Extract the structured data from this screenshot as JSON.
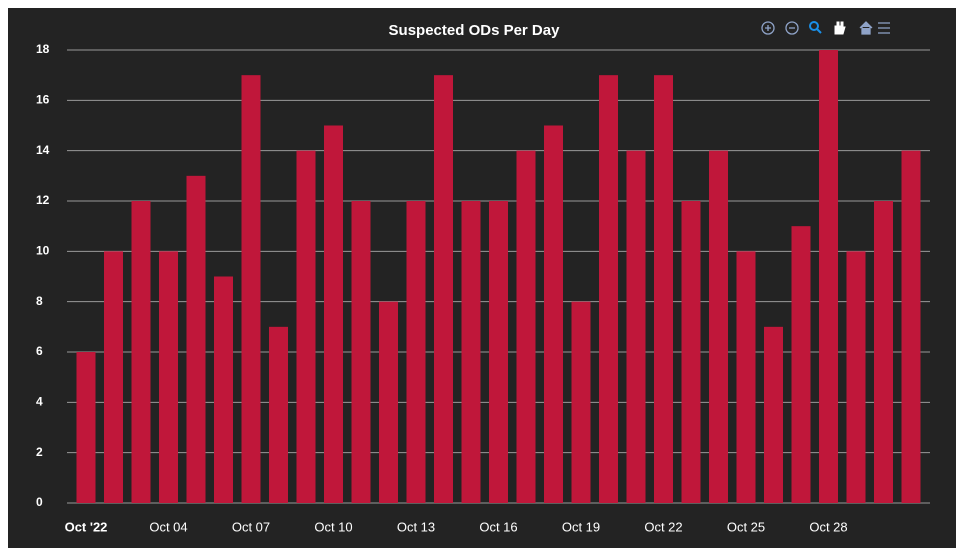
{
  "chart_data": {
    "type": "bar",
    "title": "Suspected ODs Per Day",
    "categories": [
      "Oct '22",
      null,
      null,
      "Oct 04",
      null,
      null,
      "Oct 07",
      null,
      null,
      "Oct 10",
      null,
      null,
      "Oct 13",
      null,
      null,
      "Oct 16",
      null,
      null,
      "Oct 19",
      null,
      null,
      "Oct 22",
      null,
      null,
      "Oct 25",
      null,
      null,
      "Oct 28",
      null,
      null,
      null
    ],
    "values": [
      6,
      10,
      12,
      10,
      13,
      9,
      17,
      7,
      14,
      15,
      12,
      8,
      12,
      17,
      12,
      12,
      14,
      15,
      8,
      17,
      14,
      17,
      12,
      14,
      10,
      7,
      11,
      18,
      10,
      12,
      14
    ],
    "color": "#c0173a",
    "ylim": [
      0,
      18
    ],
    "yticks": [
      0,
      2,
      4,
      6,
      8,
      10,
      12,
      14,
      16,
      18
    ],
    "grid": true
  }
}
